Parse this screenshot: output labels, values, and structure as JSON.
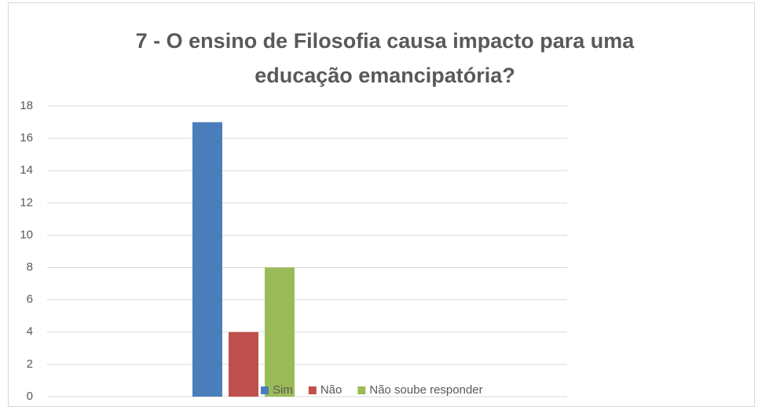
{
  "chart_data": {
    "type": "bar",
    "title": "7 - O ensino de Filosofia causa impacto para uma educação emancipatória?",
    "categories": [
      null
    ],
    "series": [
      {
        "name": "Sim",
        "color": "#4a7ebb",
        "values": [
          17
        ]
      },
      {
        "name": "Não",
        "color": "#c0504d",
        "values": [
          4
        ]
      },
      {
        "name": "Não soube responder",
        "color": "#9bbb59",
        "values": [
          8
        ]
      }
    ],
    "ylim": [
      0,
      18
    ],
    "yticks": [
      0,
      2,
      4,
      6,
      8,
      10,
      12,
      14,
      16,
      18
    ],
    "grid": true,
    "legend": "bottom"
  }
}
